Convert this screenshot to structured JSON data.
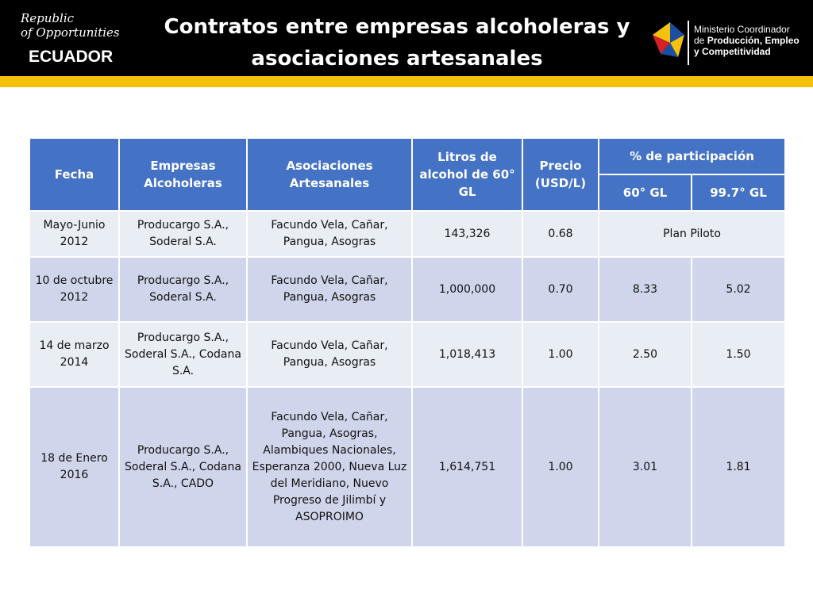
{
  "header": {
    "title_line1": "Contratos entre empresas alcoholeras y",
    "title_line2": "asociaciones artesanales",
    "left_logo": {
      "line1": "Republic",
      "line2": "of Opportunities",
      "country": "ECUADOR"
    },
    "right_logo": {
      "line1": "Ministerio Coordinador",
      "line2_prefix": "de ",
      "line2_bold": "Producción, Empleo",
      "line3": "y Competitividad"
    },
    "colors": {
      "bar": "#000000",
      "stripe": "#f4c20d"
    }
  },
  "table": {
    "headers": {
      "fecha": "Fecha",
      "empresas": "Empresas Alcoholeras",
      "asociaciones": "Asociaciones Artesanales",
      "litros": "Litros de alcohol de 60° GL",
      "precio": "Precio (USD/L)",
      "participacion": "% de participación",
      "gl60": "60° GL",
      "gl997": "99.7° GL"
    },
    "rows": [
      {
        "fecha": "Mayo-Junio 2012",
        "empresas": "Producargo S.A., Soderal S.A.",
        "asociaciones": "Facundo Vela, Cañar, Pangua, Asogras",
        "litros": "143,326",
        "precio": "0.68",
        "participacion": "Plan Piloto"
      },
      {
        "fecha": "10 de octubre 2012",
        "empresas": "Producargo S.A., Soderal S.A.",
        "asociaciones": "Facundo Vela, Cañar, Pangua, Asogras",
        "litros": "1,000,000",
        "precio": "0.70",
        "gl60": "8.33",
        "gl997": "5.02"
      },
      {
        "fecha": "14 de marzo 2014",
        "empresas": "Producargo S.A., Soderal S.A., Codana S.A.",
        "asociaciones": "Facundo Vela, Cañar, Pangua, Asogras",
        "litros": "1,018,413",
        "precio": "1.00",
        "gl60": "2.50",
        "gl997": "1.50"
      },
      {
        "fecha": "18 de Enero 2016",
        "empresas": "Producargo S.A., Soderal S.A., Codana S.A., CADO",
        "asociaciones": "Facundo Vela, Cañar, Pangua, Asogras, Alambiques Nacionales, Esperanza 2000, Nueva Luz del Meridiano, Nuevo Progreso de Jilimbí y ASOPROIMO",
        "litros": "1,614,751",
        "precio": "1.00",
        "gl60": "3.01",
        "gl997": "1.81"
      }
    ],
    "colors": {
      "header": "#4472c4",
      "row_light": "#e9edf4",
      "row_dark": "#cfd5ea"
    }
  }
}
